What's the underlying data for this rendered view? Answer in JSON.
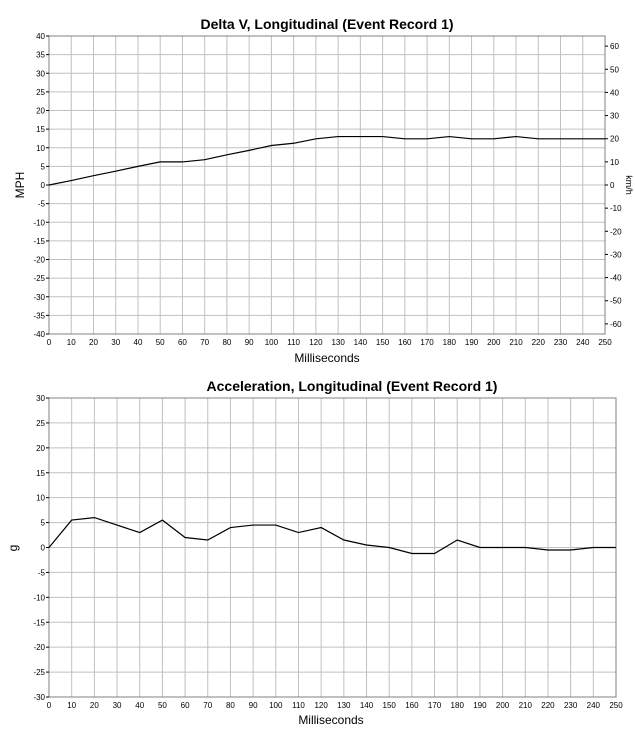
{
  "chart_data": [
    {
      "type": "line",
      "title": "Delta V, Longitudinal (Event Record 1)",
      "xlabel": "Milliseconds",
      "ylabel": "MPH",
      "y2label": "km/h",
      "xlim": [
        0,
        250
      ],
      "ylim": [
        -40,
        40
      ],
      "y2lim": [
        -64.37,
        64.37
      ],
      "x_ticks": [
        0,
        10,
        20,
        30,
        40,
        50,
        60,
        70,
        80,
        90,
        100,
        110,
        120,
        130,
        140,
        150,
        160,
        170,
        180,
        190,
        200,
        210,
        220,
        230,
        240,
        250
      ],
      "y_ticks": [
        -40,
        -35,
        -30,
        -25,
        -20,
        -15,
        -10,
        -5,
        0,
        5,
        10,
        15,
        20,
        25,
        30,
        35,
        40
      ],
      "y2_ticks": [
        -60,
        -50,
        -40,
        -30,
        -20,
        -10,
        0,
        10,
        20,
        30,
        40,
        50,
        60
      ],
      "grid": true,
      "line_color": "#000000",
      "grid_color": "#c0c0c0",
      "series": [
        {
          "x": [
            0,
            10,
            20,
            30,
            40,
            50,
            60,
            70,
            80,
            90,
            100,
            110,
            120,
            130,
            140,
            150,
            160,
            170,
            180,
            190,
            200,
            210,
            220,
            230,
            240,
            250
          ],
          "values": [
            0,
            1.2,
            2.5,
            3.7,
            5,
            6.2,
            6.2,
            6.8,
            8.1,
            9.3,
            10.6,
            11.2,
            12.4,
            13,
            13,
            13,
            12.4,
            12.4,
            13,
            12.4,
            12.4,
            13,
            12.4,
            12.4,
            12.4,
            12.4
          ]
        }
      ]
    },
    {
      "type": "line",
      "title": "Acceleration, Longitudinal (Event Record 1)",
      "xlabel": "Milliseconds",
      "ylabel": "g",
      "xlim": [
        0,
        250
      ],
      "ylim": [
        -30,
        30
      ],
      "x_ticks": [
        0,
        10,
        20,
        30,
        40,
        50,
        60,
        70,
        80,
        90,
        100,
        110,
        120,
        130,
        140,
        150,
        160,
        170,
        180,
        190,
        200,
        210,
        220,
        230,
        240,
        250
      ],
      "y_ticks": [
        -30,
        -25,
        -20,
        -15,
        -10,
        -5,
        0,
        5,
        10,
        15,
        20,
        25,
        30
      ],
      "grid": true,
      "line_color": "#000000",
      "grid_color": "#c0c0c0",
      "series": [
        {
          "x": [
            0,
            10,
            20,
            30,
            40,
            50,
            60,
            70,
            80,
            90,
            100,
            110,
            120,
            130,
            140,
            150,
            160,
            170,
            180,
            190,
            200,
            210,
            220,
            230,
            240,
            250
          ],
          "values": [
            0,
            5.5,
            6,
            4.5,
            3,
            5.5,
            2,
            1.5,
            4,
            4.5,
            4.5,
            3,
            4,
            1.5,
            0.5,
            0,
            -1.2,
            -1.2,
            1.5,
            0,
            0,
            0,
            -0.5,
            -0.5,
            0,
            0
          ]
        }
      ]
    }
  ]
}
